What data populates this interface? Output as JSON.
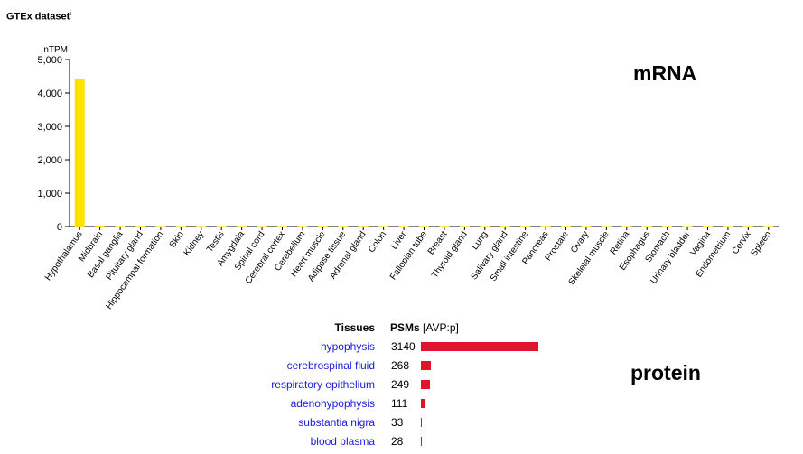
{
  "header": {
    "title": "GTEx dataset",
    "info_mark": "i"
  },
  "labels": {
    "mrna": "mRNA",
    "protein": "protein"
  },
  "chart_data": {
    "type": "bar",
    "ylabel": "nTPM",
    "ylim": [
      0,
      5000
    ],
    "yticks": [
      "0",
      "1,000",
      "2,000",
      "3,000",
      "4,000",
      "5,000"
    ],
    "ytick_values": [
      0,
      1000,
      2000,
      3000,
      4000,
      5000
    ],
    "categories": [
      "Hypothalamus",
      "Midbrain",
      "Basal ganglia",
      "Pituitary gland",
      "Hippocampal formation",
      "Skin",
      "Kidney",
      "Testis",
      "Amygdala",
      "Spinal cord",
      "Cerebral cortex",
      "Cerebellum",
      "Heart muscle",
      "Adipose tissue",
      "Adrenal gland",
      "Colon",
      "Liver",
      "Fallopian tube",
      "Breast",
      "Thyroid gland",
      "Lung",
      "Salivary gland",
      "Small intestine",
      "Pancreas",
      "Prostate",
      "Ovary",
      "Skeletal muscle",
      "Retina",
      "Esophagus",
      "Stomach",
      "Urinary bladder",
      "Vagina",
      "Endometrium",
      "Cervix",
      "Spleen"
    ],
    "values": [
      4430,
      30,
      12,
      8,
      6,
      4,
      3,
      3,
      3,
      2,
      2,
      2,
      1,
      1,
      1,
      1,
      1,
      1,
      1,
      1,
      1,
      1,
      1,
      1,
      1,
      1,
      1,
      1,
      1,
      1,
      1,
      1,
      1,
      1,
      1
    ],
    "bar_color": "#ffe000",
    "grid": false
  },
  "psm": {
    "header_tissues": "Tissues",
    "header_psms_bold": "PSMs",
    "header_psms_suffix": "[AVP:p]",
    "bar_color": "#e0142c",
    "max": 3140,
    "rows": [
      {
        "tissue": "hypophysis",
        "count": "3140",
        "value": 3140
      },
      {
        "tissue": "cerebrospinal fluid",
        "count": "268",
        "value": 268
      },
      {
        "tissue": "respiratory epithelium",
        "count": "249",
        "value": 249
      },
      {
        "tissue": "adenohypophysis",
        "count": "111",
        "value": 111
      },
      {
        "tissue": "substantia nigra",
        "count": "33",
        "value": 33
      },
      {
        "tissue": "blood plasma",
        "count": "28",
        "value": 28
      }
    ]
  }
}
